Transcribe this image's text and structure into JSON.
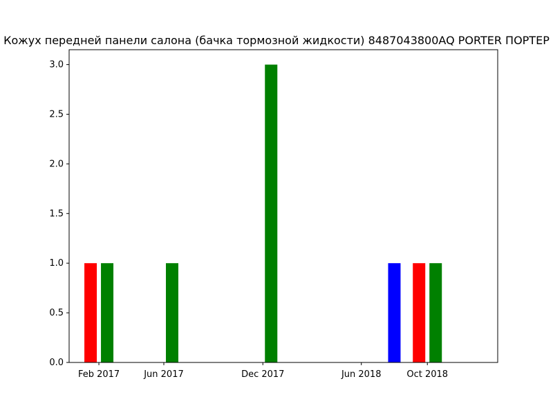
{
  "chart_data": {
    "type": "bar",
    "title": "Кожух передней панели салона (бачка тормозной жидкости) 8487043800AQ PORTER ПОРТЕР",
    "xlabel": "",
    "ylabel": "",
    "x_axis": {
      "type": "date",
      "range": [
        "2016-12-08",
        "2019-02-08"
      ],
      "ticks": [
        {
          "date": "2017-02-01",
          "label": "Feb 2017"
        },
        {
          "date": "2017-06-01",
          "label": "Jun 2017"
        },
        {
          "date": "2017-12-01",
          "label": "Dec 2017"
        },
        {
          "date": "2018-06-01",
          "label": "Jun 2018"
        },
        {
          "date": "2018-10-01",
          "label": "Oct 2018"
        }
      ]
    },
    "y_axis": {
      "range": [
        0,
        3.15
      ],
      "ticks": [
        {
          "value": 0,
          "label": "0.0"
        },
        {
          "value": 0.5,
          "label": "0.5"
        },
        {
          "value": 1,
          "label": "1.0"
        },
        {
          "value": 1.5,
          "label": "1.5"
        },
        {
          "value": 2,
          "label": "2.0"
        },
        {
          "value": 2.5,
          "label": "2.5"
        },
        {
          "value": 3,
          "label": "3.0"
        }
      ]
    },
    "grid": false,
    "legend": "none",
    "series": [
      {
        "color": "#ff0000",
        "points": [
          {
            "date": "2017-02-01",
            "value": 1
          },
          {
            "date": "2018-10-01",
            "value": 1
          }
        ]
      },
      {
        "color": "#008000",
        "points": [
          {
            "date": "2017-02-01",
            "value": 1
          },
          {
            "date": "2017-06-01",
            "value": 1
          },
          {
            "date": "2017-12-01",
            "value": 3
          },
          {
            "date": "2018-10-01",
            "value": 1
          }
        ]
      },
      {
        "color": "#0000ff",
        "points": [
          {
            "date": "2018-08-01",
            "value": 1
          }
        ]
      }
    ]
  }
}
